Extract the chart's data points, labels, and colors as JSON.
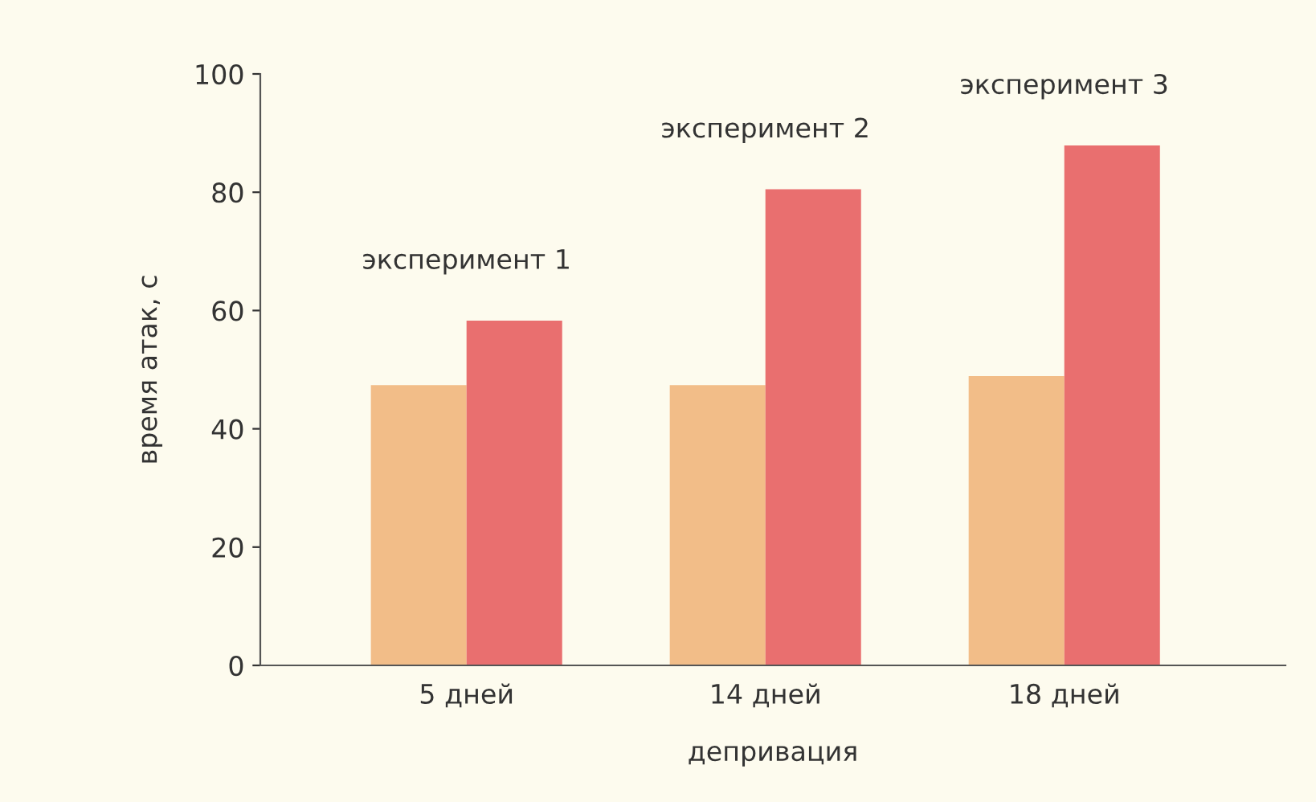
{
  "chart_data": {
    "type": "bar",
    "xlabel": "депривация",
    "ylabel": "время атак, с",
    "categories": [
      "5 дней",
      "14 дней",
      "18 дней"
    ],
    "series": [
      {
        "color": "#f2bd88",
        "values": [
          47.4,
          47.4,
          48.9
        ]
      },
      {
        "color": "#e96f6f",
        "values": [
          58.3,
          80.5,
          87.9
        ]
      }
    ],
    "ylim": [
      0,
      100
    ],
    "yticks": [
      0,
      20,
      40,
      60,
      80,
      100
    ],
    "grid": false,
    "legend": false,
    "annotations": [
      "эксперимент 1",
      "эксперимент 2",
      "эксперимент 3"
    ]
  }
}
